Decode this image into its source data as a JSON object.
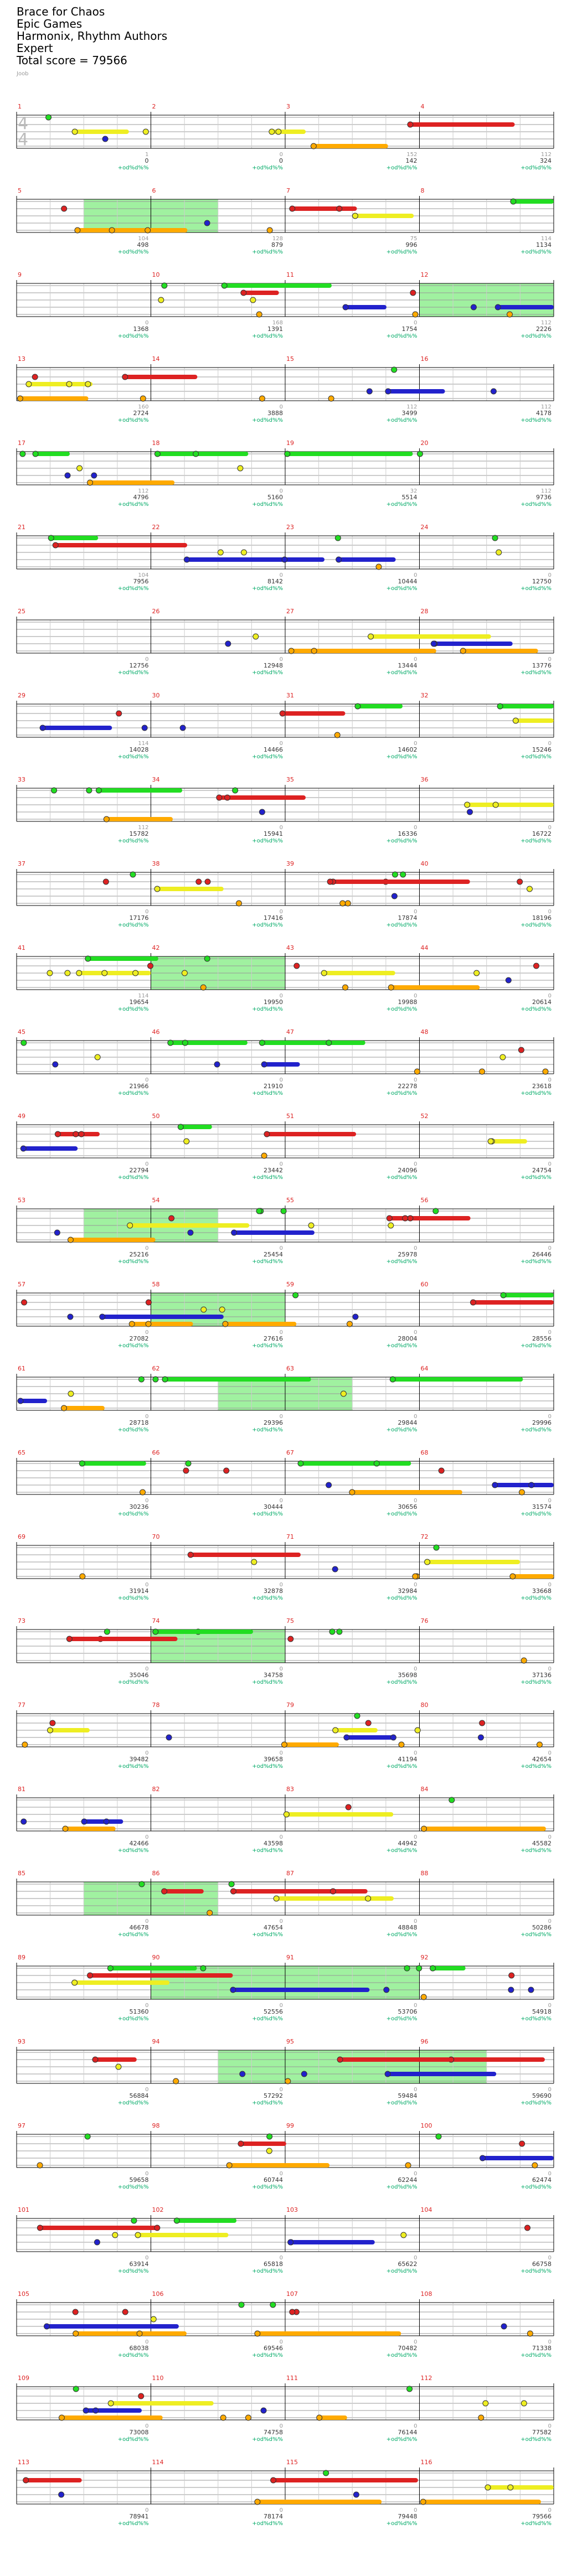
{
  "song": {
    "title": "Brace for Chaos",
    "album": "Epic Games",
    "artists": "Harmonix, Rhythm Authors",
    "difficulty": "Expert",
    "total_score": "Total score = 79566"
  },
  "subtitle": "Joob",
  "time_signature": {
    "top": "4",
    "bottom": "4"
  },
  "overdrive_label": "+od%d%%",
  "colors": {
    "green": "#22dd22",
    "red": "#dd2222",
    "yellow": "#eeee22",
    "blue": "#2222cc",
    "orange": "#ffaa00",
    "overdrive": "#88ee88",
    "score": "#00aa66"
  },
  "rows": [
    {
      "m": [
        1,
        2,
        3,
        4
      ],
      "s": [
        0,
        0,
        142,
        324
      ],
      "c": [
        1,
        0,
        152,
        112
      ]
    },
    {
      "m": [
        5,
        6,
        7,
        8
      ],
      "s": [
        498,
        879,
        996,
        1134
      ],
      "c": [
        104,
        128,
        75,
        114
      ]
    },
    {
      "m": [
        9,
        10,
        11,
        12
      ],
      "s": [
        1368,
        1391,
        1754,
        2226
      ],
      "c": [
        0,
        168,
        0,
        112
      ]
    },
    {
      "m": [
        13,
        14,
        15,
        16
      ],
      "s": [
        2724,
        3888,
        3499,
        4178
      ],
      "c": [
        160,
        0,
        112,
        112
      ]
    },
    {
      "m": [
        17,
        18,
        19,
        20
      ],
      "s": [
        4796,
        5160,
        5514,
        9736
      ],
      "c": [
        112,
        0,
        32,
        112
      ]
    },
    {
      "m": [
        21,
        22,
        23,
        24
      ],
      "s": [
        7956,
        8142,
        10444,
        12750
      ],
      "c": [
        104,
        0,
        0,
        0
      ]
    },
    {
      "m": [
        25,
        26,
        27,
        28
      ],
      "s": [
        12756,
        12948,
        13444,
        13776
      ],
      "c": [
        0,
        0,
        0,
        0
      ]
    },
    {
      "m": [
        29,
        30,
        31,
        32
      ],
      "s": [
        14028,
        14466,
        14602,
        15246
      ],
      "c": [
        114,
        0,
        0,
        0
      ]
    },
    {
      "m": [
        33,
        34,
        35,
        36
      ],
      "s": [
        15782,
        15941,
        16336,
        16722
      ],
      "c": [
        112,
        0,
        0,
        0
      ]
    },
    {
      "m": [
        37,
        38,
        39,
        40
      ],
      "s": [
        17176,
        17416,
        17874,
        18196
      ],
      "c": [
        0,
        0,
        0,
        0
      ]
    },
    {
      "m": [
        41,
        42,
        43,
        44
      ],
      "s": [
        19654,
        19950,
        19988,
        20614
      ],
      "c": [
        114,
        0,
        0,
        0
      ]
    },
    {
      "m": [
        45,
        46,
        47,
        48
      ],
      "s": [
        21966,
        21910,
        22278,
        23618
      ],
      "c": [
        0,
        0,
        0,
        0
      ]
    },
    {
      "m": [
        49,
        50,
        51,
        52
      ],
      "s": [
        22794,
        23442,
        24096,
        24754
      ],
      "c": [
        0,
        0,
        0,
        0
      ]
    },
    {
      "m": [
        53,
        54,
        55,
        56
      ],
      "s": [
        25216,
        25454,
        25978,
        26446
      ],
      "c": [
        0,
        0,
        0,
        0
      ]
    },
    {
      "m": [
        57,
        58,
        59,
        60
      ],
      "s": [
        27082,
        27616,
        28004,
        28556
      ],
      "c": [
        0,
        0,
        0,
        0
      ]
    },
    {
      "m": [
        61,
        62,
        63,
        64
      ],
      "s": [
        28718,
        29396,
        29844,
        29996
      ],
      "c": [
        0,
        0,
        0,
        0
      ]
    },
    {
      "m": [
        65,
        66,
        67,
        68
      ],
      "s": [
        30236,
        30444,
        30656,
        31574
      ],
      "c": [
        0,
        0,
        0,
        0
      ]
    },
    {
      "m": [
        69,
        70,
        71,
        72
      ],
      "s": [
        31914,
        32878,
        32984,
        33668
      ],
      "c": [
        0,
        0,
        0,
        0
      ]
    },
    {
      "m": [
        73,
        74,
        75,
        76
      ],
      "s": [
        35046,
        34758,
        35698,
        37136
      ],
      "c": [
        0,
        0,
        0,
        0
      ]
    },
    {
      "m": [
        77,
        78,
        79,
        80
      ],
      "s": [
        39482,
        39658,
        41194,
        42654
      ],
      "c": [
        0,
        0,
        0,
        0
      ]
    },
    {
      "m": [
        81,
        82,
        83,
        84
      ],
      "s": [
        42466,
        43598,
        44942,
        45582
      ],
      "c": [
        0,
        0,
        0,
        0
      ]
    },
    {
      "m": [
        85,
        86,
        87,
        88
      ],
      "s": [
        46678,
        47654,
        48848,
        50286
      ],
      "c": [
        0,
        0,
        0,
        0
      ]
    },
    {
      "m": [
        89,
        90,
        91,
        92
      ],
      "s": [
        51360,
        52556,
        53706,
        54918
      ],
      "c": [
        0,
        0,
        0,
        0
      ]
    },
    {
      "m": [
        93,
        94,
        95,
        96
      ],
      "s": [
        56884,
        57292,
        59484,
        59690
      ],
      "c": [
        0,
        0,
        0,
        0
      ]
    },
    {
      "m": [
        97,
        98,
        99,
        100
      ],
      "s": [
        59658,
        60744,
        62244,
        62474
      ],
      "c": [
        0,
        0,
        0,
        0
      ]
    },
    {
      "m": [
        101,
        102,
        103,
        104
      ],
      "s": [
        63914,
        65818,
        65622,
        66758
      ],
      "c": [
        0,
        0,
        0,
        0
      ]
    },
    {
      "m": [
        105,
        106,
        107,
        108
      ],
      "s": [
        68038,
        69546,
        70482,
        71338
      ],
      "c": [
        0,
        0,
        0,
        0
      ]
    },
    {
      "m": [
        109,
        110,
        111,
        112
      ],
      "s": [
        73008,
        74758,
        76144,
        77582
      ],
      "c": [
        0,
        0,
        0,
        0
      ]
    },
    {
      "m": [
        113,
        114,
        115,
        116
      ],
      "s": [
        78941,
        78174,
        79448,
        79566
      ],
      "c": [
        0,
        0,
        0,
        0
      ]
    }
  ]
}
